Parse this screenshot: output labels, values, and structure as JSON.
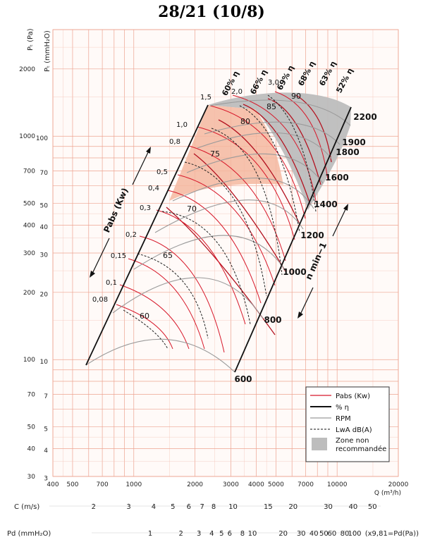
{
  "chart_data": {
    "type": "line",
    "title": "28/21 (10/8)",
    "xlabel": "Q (m³/h)",
    "ylabel_pa": "Pₜ (Pa)",
    "ylabel_mmh2o": "Pₜ (mmH₂O)",
    "x_scale": "log",
    "y_scale": "log",
    "xlim": [
      400,
      20000
    ],
    "ylim_pa": [
      30,
      3000
    ],
    "x_ticks": [
      "400",
      "500",
      "700",
      "1000",
      "2000",
      "3000",
      "4000",
      "5000",
      "7000",
      "10000",
      "20000"
    ],
    "y_ticks_pa": [
      "2000",
      "1000",
      "700",
      "500",
      "400",
      "300",
      "200",
      "100",
      "70",
      "50",
      "40",
      "30"
    ],
    "y_ticks_mmh2o": [
      "100",
      "70",
      "50",
      "40",
      "30",
      "20",
      "10",
      "7",
      "5",
      "4",
      "3"
    ],
    "rpm_labels": [
      "600",
      "800",
      "1000",
      "1200",
      "1400",
      "1600",
      "1800",
      "1900",
      "2200"
    ],
    "power_labels": [
      "0,08",
      "0,1",
      "0,15",
      "0,2",
      "0,3",
      "0,4",
      "0,5",
      "0,8",
      "1,0",
      "1,5",
      "2,0",
      "3,0"
    ],
    "efficiency_labels": [
      "60% η",
      "66% η",
      "69% η",
      "68% η",
      "63% η",
      "52% η"
    ],
    "noise_labels": [
      "60",
      "65",
      "70",
      "75",
      "80",
      "85",
      "90"
    ],
    "pabs_axis_label": "Pabs (Kw)",
    "n_axis_label": "n  min−1",
    "legend": {
      "items": [
        "Pabs (Kw)",
        "% η",
        "RPM",
        "LwA dB(A)"
      ],
      "zone": "Zone non recommandée"
    },
    "c_axis": {
      "label": "C (m/s)",
      "ticks": [
        "2",
        "3",
        "4",
        "5",
        "6",
        "7",
        "8",
        "10",
        "15",
        "20",
        "30",
        "40",
        "50"
      ]
    },
    "pd_axis": {
      "label": "Pd (mmH₂O)",
      "ticks": [
        "1",
        "2",
        "3",
        "4",
        "5",
        "6",
        "8",
        "10",
        "20",
        "30",
        "40",
        "50",
        "60",
        "80",
        "100"
      ],
      "note": "(x9,81=Pd(Pa))"
    },
    "colors": {
      "grid": "#f4c3b6",
      "grid_major": "#eda390",
      "pabs": "#d7182a",
      "rpm": "#9a9a9a",
      "zone": "#bdbdbd",
      "zone_orange": "#f4b7a0"
    }
  }
}
